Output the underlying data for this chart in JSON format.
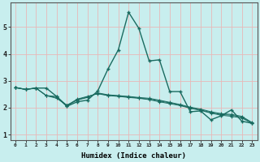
{
  "xlabel": "Humidex (Indice chaleur)",
  "bg_color": "#c8eeee",
  "grid_color": "#e8b8b8",
  "line_color": "#1a6b60",
  "xlim": [
    -0.5,
    23.5
  ],
  "ylim": [
    0.8,
    5.9
  ],
  "yticks": [
    1,
    2,
    3,
    4,
    5
  ],
  "xticks": [
    0,
    1,
    2,
    3,
    4,
    5,
    6,
    7,
    8,
    9,
    10,
    11,
    12,
    13,
    14,
    15,
    16,
    17,
    18,
    19,
    20,
    21,
    22,
    23
  ],
  "series1_x": [
    0,
    1,
    2,
    3,
    4,
    5,
    6,
    7,
    8,
    9,
    10,
    11,
    12,
    13,
    14,
    15,
    16,
    17,
    18,
    19,
    20,
    21,
    22,
    23
  ],
  "series1_y": [
    2.75,
    2.68,
    2.73,
    2.73,
    2.42,
    2.05,
    2.22,
    2.28,
    2.62,
    3.44,
    4.15,
    5.55,
    4.95,
    3.74,
    3.78,
    2.6,
    2.6,
    1.85,
    1.88,
    1.55,
    1.7,
    1.92,
    1.5,
    1.42
  ],
  "series2_x": [
    0,
    1,
    2,
    3,
    4,
    5,
    6,
    7,
    8,
    9,
    10,
    11,
    12,
    13,
    14,
    15,
    16,
    17,
    18,
    19,
    20,
    21,
    22,
    23
  ],
  "series2_y": [
    2.75,
    2.68,
    2.73,
    2.45,
    2.35,
    2.1,
    2.28,
    2.38,
    2.55,
    2.48,
    2.45,
    2.42,
    2.38,
    2.35,
    2.28,
    2.2,
    2.12,
    2.02,
    1.95,
    1.85,
    1.78,
    1.75,
    1.68,
    1.45
  ],
  "series3_x": [
    0,
    1,
    2,
    3,
    4,
    5,
    6,
    7,
    8,
    9,
    10,
    11,
    12,
    13,
    14,
    15,
    16,
    17,
    18,
    19,
    20,
    21,
    22,
    23
  ],
  "series3_y": [
    2.75,
    2.68,
    2.73,
    2.45,
    2.42,
    2.08,
    2.32,
    2.42,
    2.52,
    2.45,
    2.42,
    2.38,
    2.35,
    2.3,
    2.22,
    2.15,
    2.08,
    1.98,
    1.9,
    1.8,
    1.72,
    1.68,
    1.62,
    1.42
  ],
  "series4_x": [
    0,
    1,
    2,
    3,
    4,
    5,
    6,
    7,
    8,
    9,
    10,
    11,
    12,
    13,
    14,
    15,
    16,
    17,
    18,
    19,
    20,
    21,
    22,
    23
  ],
  "series4_y": [
    2.75,
    2.68,
    2.73,
    2.45,
    2.38,
    2.06,
    2.3,
    2.4,
    2.54,
    2.46,
    2.44,
    2.4,
    2.36,
    2.32,
    2.25,
    2.18,
    2.1,
    2.0,
    1.92,
    1.82,
    1.75,
    1.72,
    1.65,
    1.43
  ]
}
